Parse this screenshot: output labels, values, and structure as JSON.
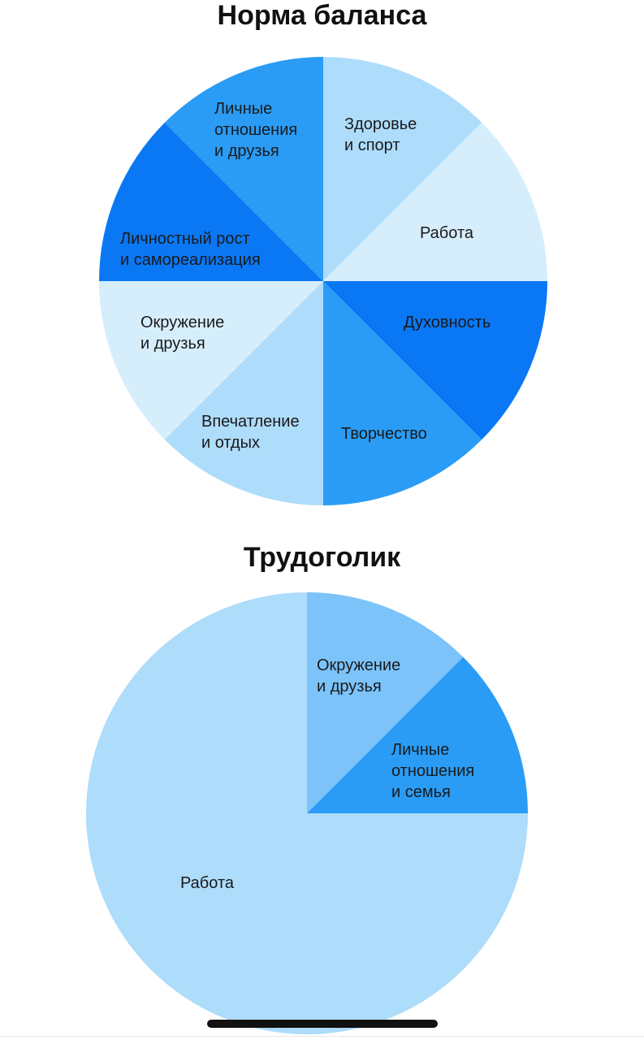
{
  "chart_data": [
    {
      "type": "pie",
      "title": "Норма баланса",
      "slices": [
        {
          "label": [
            "Здоровье",
            "и спорт"
          ],
          "value": 12.5,
          "color": "#aedcfb"
        },
        {
          "label": [
            "Работа"
          ],
          "value": 12.5,
          "color": "#d6eefc"
        },
        {
          "label": [
            "Духовность"
          ],
          "value": 12.5,
          "color": "#0a78f5"
        },
        {
          "label": [
            "Творчество"
          ],
          "value": 12.5,
          "color": "#2a9cf5"
        },
        {
          "label": [
            "Впечатление",
            "и отдых"
          ],
          "value": 12.5,
          "color": "#aedcfb"
        },
        {
          "label": [
            "Окружение",
            "и друзья"
          ],
          "value": 12.5,
          "color": "#d6eefc"
        },
        {
          "label": [
            "Личностный рост",
            "и самореализация"
          ],
          "value": 12.5,
          "color": "#0a78f5"
        },
        {
          "label": [
            "Личные",
            "отношения",
            "и друзья"
          ],
          "value": 12.5,
          "color": "#2a9cf5"
        }
      ]
    },
    {
      "type": "pie",
      "title": "Трудоголик",
      "slices": [
        {
          "label": [
            "Окружение",
            "и друзья"
          ],
          "value": 12.5,
          "color": "#7cc3fa"
        },
        {
          "label": [
            "Личные",
            "отношения",
            "и семья"
          ],
          "value": 12.5,
          "color": "#2a9cf5"
        },
        {
          "label": [
            "Работа"
          ],
          "value": 75,
          "color": "#aedcfb"
        }
      ]
    }
  ]
}
